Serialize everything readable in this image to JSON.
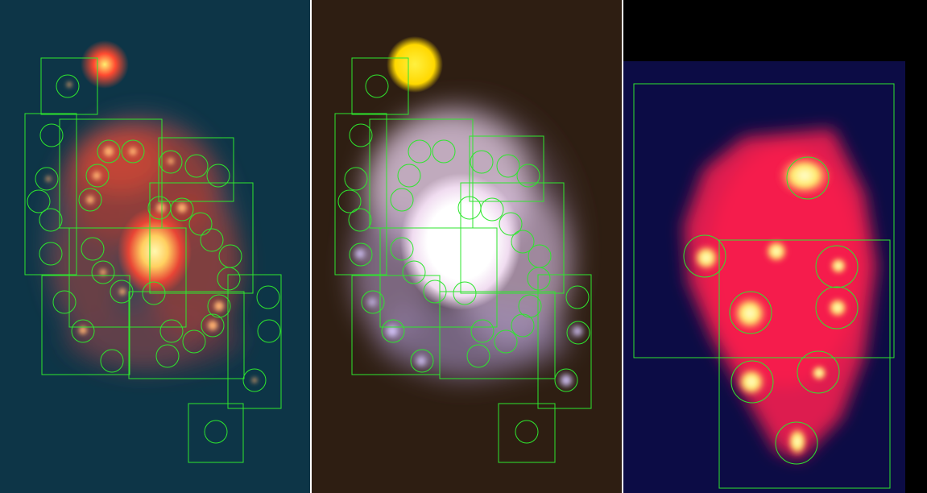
{
  "panels": [
    {
      "id": "panel-1",
      "background": "#0d3547",
      "core": "#ffe07a",
      "arm": "#e8403a",
      "star": "#ff3a2a",
      "overlay": "#2ee62e"
    },
    {
      "id": "panel-2",
      "background": "#2e1e12",
      "core": "#ffffff",
      "arm": "#e8c6ef",
      "star": "#ffe000",
      "overlay": "#2ee62e"
    },
    {
      "id": "panel-3",
      "background": "#000040",
      "core": "#ffe96a",
      "arm": "#ff1f4a",
      "star": "#fff07a",
      "overlay": "#2ee62e"
    }
  ]
}
